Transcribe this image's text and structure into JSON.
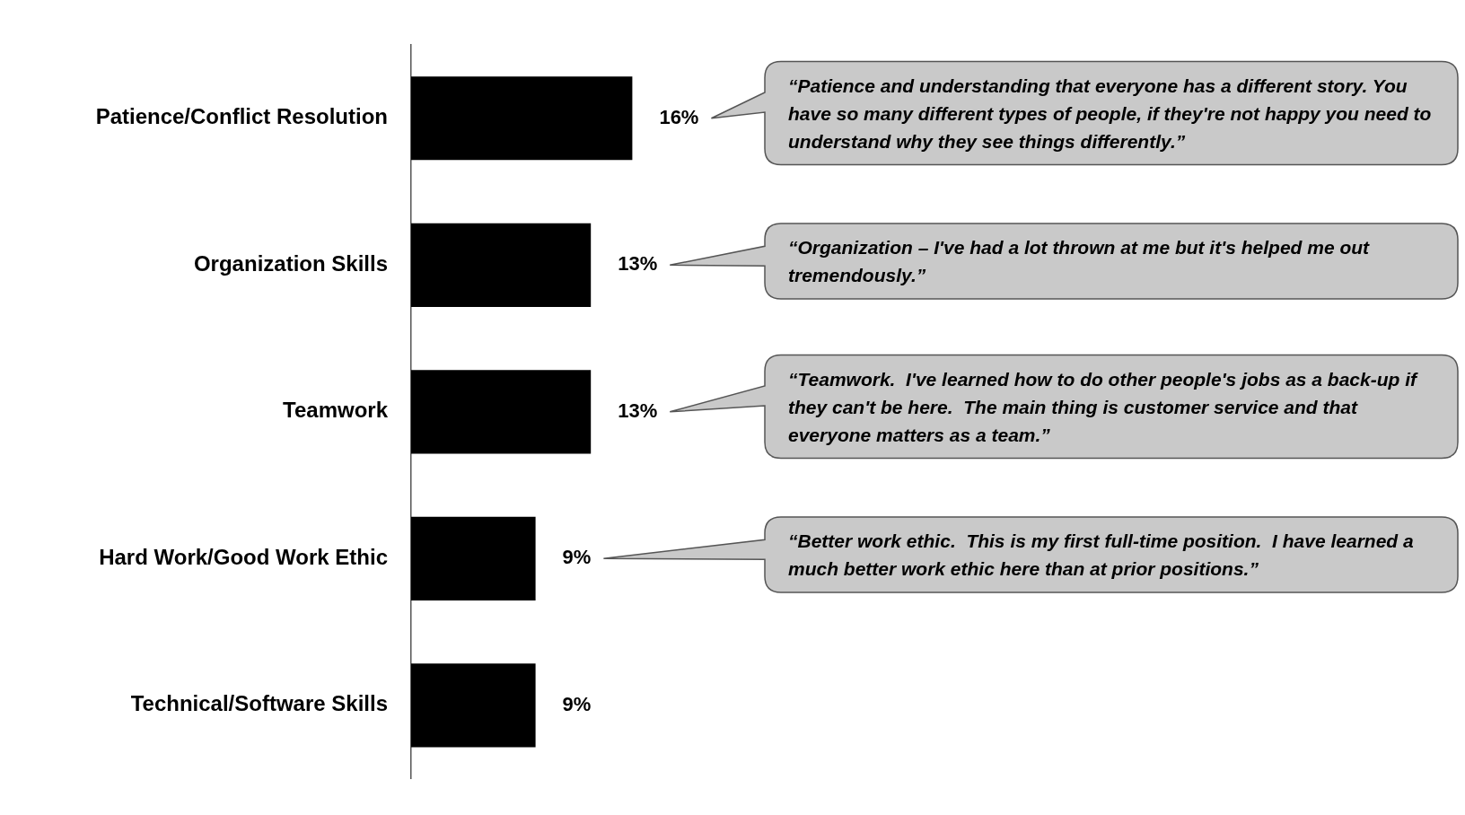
{
  "chart_data": {
    "type": "bar",
    "orientation": "horizontal",
    "categories": [
      "Patience/Conflict Resolution",
      "Organization Skills",
      "Teamwork",
      "Hard Work/Good Work Ethic",
      "Technical/Software Skills"
    ],
    "values": [
      16,
      13,
      13,
      9,
      9
    ],
    "value_labels": [
      "16%",
      "13%",
      "13%",
      "9%",
      "9%"
    ],
    "color": "#000000",
    "legend": false,
    "annotations": [
      "“Patience and understanding that everyone has a different story. You have so many different types of people, if they're not happy you need to understand why they see things differently.”",
      "“Organization – I've had a lot thrown at me but it's helped me out tremendously.”",
      "“Teamwork.  I've learned how to do other people's jobs as a back-up if they can't be here.  The main thing is customer service and that everyone matters as a team.”",
      "“Better work ethic.  This is my first full-time position.  I have learned a much better work ethic here than at prior positions.”"
    ]
  }
}
